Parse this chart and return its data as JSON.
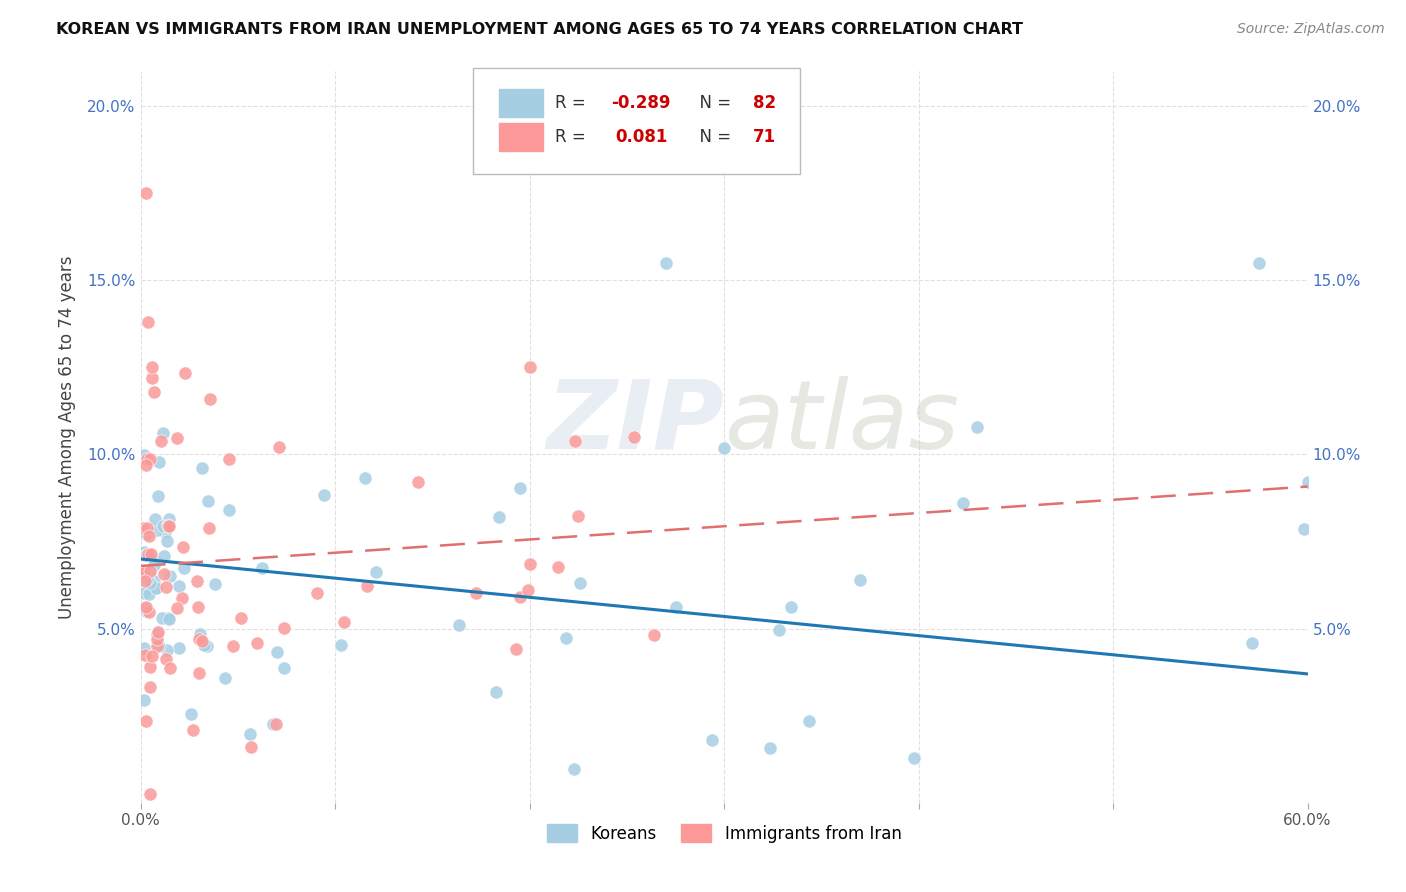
{
  "title": "KOREAN VS IMMIGRANTS FROM IRAN UNEMPLOYMENT AMONG AGES 65 TO 74 YEARS CORRELATION CHART",
  "source": "Source: ZipAtlas.com",
  "ylabel": "Unemployment Among Ages 65 to 74 years",
  "xlim": [
    0.0,
    0.6
  ],
  "ylim": [
    0.0,
    0.21
  ],
  "xtick_vals": [
    0.0,
    0.1,
    0.2,
    0.3,
    0.4,
    0.5,
    0.6
  ],
  "xticklabels": [
    "0.0%",
    "",
    "",
    "",
    "",
    "",
    "60.0%"
  ],
  "ytick_vals": [
    0.0,
    0.05,
    0.1,
    0.15,
    0.2
  ],
  "yticklabels": [
    "",
    "5.0%",
    "10.0%",
    "15.0%",
    "20.0%"
  ],
  "legend_blue_label": "Koreans",
  "legend_pink_label": "Immigrants from Iran",
  "blue_R": "-0.289",
  "blue_N": "82",
  "pink_R": "0.081",
  "pink_N": "71",
  "watermark": "ZIPatlas",
  "blue_dot_color": "#a6cee3",
  "pink_dot_color": "#fb9a99",
  "blue_line_color": "#1f78b4",
  "pink_line_color": "#e07070",
  "tick_color": "#4472c4",
  "grid_color": "#dddddd",
  "legend_text_color": "#333333",
  "legend_num_color": "#cc0000",
  "title_color": "#111111",
  "source_color": "#888888"
}
